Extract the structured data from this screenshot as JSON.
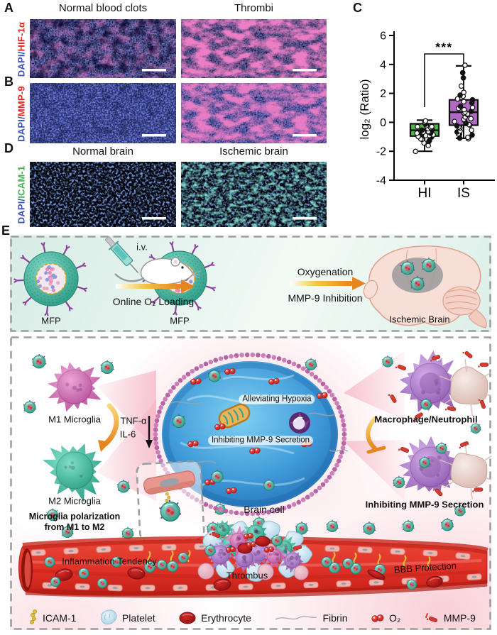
{
  "panelA": {
    "letter": "A",
    "col_headers": [
      "Normal blood clots",
      "Thrombi"
    ],
    "side_label": {
      "dapi": "DAPI",
      "sep": "/",
      "marker": "HIF-1α"
    }
  },
  "panelB": {
    "letter": "B",
    "side_label": {
      "dapi": "DAPI",
      "sep": "/",
      "marker": "MMP-9"
    }
  },
  "panelC": {
    "letter": "C"
  },
  "panelD": {
    "letter": "D",
    "col_headers": [
      "Normal brain",
      "Ischemic brain"
    ],
    "side_label": {
      "dapi": "DAPI",
      "sep": "/",
      "marker": "ICAM-1"
    }
  },
  "panelE": {
    "letter": "E",
    "top": {
      "mfp1_label": "MFP",
      "iv_label": "i.v.",
      "arrow1_label": "Online O₂ Loading",
      "mfp2_label": "MFP",
      "arrow2_top_label": "Oxygenation",
      "arrow2_bottom_label": "MMP-9 Inhibition",
      "brain_label": "Ischemic Brain"
    },
    "bottom": {
      "m1_label": "M1 Microglia",
      "cytokine1": "TNF-α",
      "cytokine2": "IL-6",
      "m2_label": "M2 Microglia",
      "polarization_line1": "Microglia polarization",
      "polarization_line2": "from M1 to M2",
      "cell_label1": "Alleviating Hypoxia",
      "cell_label2": "Inhibiting MMP-9 Secretion",
      "brain_cell_label": "Brain cell",
      "macrophage_label": "Macrophage/Neutrophil",
      "inhibit_label": "Inhibiting MMP-9 Secretion",
      "vessel_label_left": "Inflammation Tendency",
      "vessel_label_center": "Thrombus",
      "vessel_label_right": "BBB Protection"
    },
    "legend": [
      {
        "icon": "icam1-chain-icon",
        "label": "ICAM-1"
      },
      {
        "icon": "platelet-icon",
        "label": "Platelet"
      },
      {
        "icon": "erythrocyte-icon",
        "label": "Erythrocyte"
      },
      {
        "icon": "fibrin-icon",
        "label": "Fibrin"
      },
      {
        "icon": "o2-icon",
        "label": "O₂"
      },
      {
        "icon": "mmp9-icon",
        "label": "MMP-9"
      }
    ]
  },
  "chart_data": {
    "type": "box",
    "title": "",
    "xlabel": "",
    "ylabel": "log₂ (Ratio)",
    "ylim": [
      -4,
      6
    ],
    "yticks": [
      6,
      4,
      2,
      0,
      -2,
      -4
    ],
    "categories": [
      "HI",
      "IS"
    ],
    "grid": false,
    "legend_position": "none",
    "significance": {
      "comparison": [
        "HI",
        "IS"
      ],
      "label": "***"
    },
    "boxes": [
      {
        "name": "HI",
        "color": "#4cb648",
        "median": -0.55,
        "q1": -0.95,
        "q3": -0.1,
        "whisker_low": -2.0,
        "whisker_high": 0.15,
        "points": [
          -2.05,
          -1.6,
          -1.45,
          -1.35,
          -1.25,
          -1.2,
          -1.1,
          -1.05,
          -1.0,
          -0.95,
          -0.9,
          -0.85,
          -0.8,
          -0.78,
          -0.72,
          -0.68,
          -0.62,
          -0.58,
          -0.52,
          -0.45,
          -0.4,
          -0.35,
          -0.3,
          -0.25,
          -0.18,
          -0.1,
          0.0,
          0.12
        ]
      },
      {
        "name": "IS",
        "color": "#b06ac5",
        "median": 0.7,
        "q1": -0.2,
        "q3": 1.55,
        "whisker_low": -1.1,
        "whisker_high": 3.9,
        "points": [
          -1.15,
          -1.1,
          -1.0,
          -0.9,
          -0.82,
          -0.75,
          -0.68,
          -0.6,
          -0.5,
          -0.42,
          -0.35,
          -0.28,
          -0.2,
          -0.12,
          -0.05,
          0.05,
          0.12,
          0.2,
          0.3,
          0.4,
          0.5,
          0.6,
          0.68,
          0.72,
          0.78,
          0.85,
          0.95,
          1.05,
          1.15,
          1.3,
          1.45,
          1.55,
          1.65,
          1.78,
          1.9,
          2.05,
          2.55,
          3.05,
          3.45,
          3.9
        ]
      }
    ]
  },
  "colors": {
    "dapi_blue": "#3a50b4",
    "marker_red": "#e42320",
    "marker_green": "#3eb549",
    "box_green": "#4cb648",
    "box_purple": "#b06ac5",
    "vessel_red": "#e23227",
    "mfp_teal": "#35a98f",
    "m1_pink": "#d878c0",
    "m2_teal": "#43bda4",
    "macrophage_purple": "#b389cc",
    "neutrophil_beige": "#ecd8d2",
    "arrow_orange": "#e8841d",
    "icam_yellow": "#e0bc3c",
    "dashed_border_gray": "#9c9c9c"
  }
}
